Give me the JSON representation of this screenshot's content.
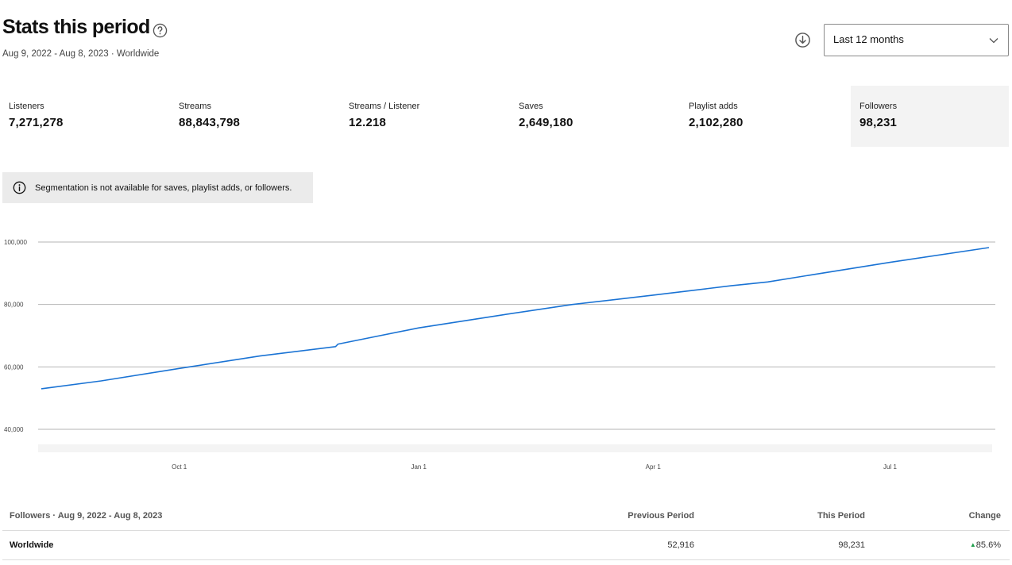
{
  "header": {
    "title": "Stats this period",
    "subtitle": "Aug 9, 2022 - Aug 8, 2023 · Worldwide"
  },
  "period_select": {
    "value": "Last 12 months"
  },
  "stats": [
    {
      "label": "Listeners",
      "value": "7,271,278"
    },
    {
      "label": "Streams",
      "value": "88,843,798"
    },
    {
      "label": "Streams / Listener",
      "value": "12.218"
    },
    {
      "label": "Saves",
      "value": "2,649,180"
    },
    {
      "label": "Playlist adds",
      "value": "2,102,280"
    },
    {
      "label": "Followers",
      "value": "98,231"
    }
  ],
  "notice": {
    "text": "Segmentation is not available for saves, playlist adds, or followers."
  },
  "chart_data": {
    "type": "line",
    "x": [
      "2022-08-09",
      "2022-09-01",
      "2022-10-01",
      "2022-11-01",
      "2022-11-30",
      "2022-12-01",
      "2023-01-01",
      "2023-02-01",
      "2023-03-01",
      "2023-04-01",
      "2023-05-01",
      "2023-05-15",
      "2023-06-01",
      "2023-07-01",
      "2023-08-08"
    ],
    "series": [
      {
        "values": [
          53000,
          55500,
          59500,
          63500,
          66500,
          67300,
          72500,
          76500,
          80000,
          83000,
          86000,
          87200,
          89500,
          93500,
          98231
        ]
      }
    ],
    "y_ticks": [
      "40,000",
      "60,000",
      "80,000",
      "100,000"
    ],
    "x_ticks": [
      "Oct 1",
      "Jan 1",
      "Apr 1",
      "Jul 1"
    ],
    "ylim": [
      40000,
      100000
    ],
    "line_color": "#1a73d4"
  },
  "table": {
    "title": "Followers · Aug 9, 2022 - Aug 8, 2023",
    "columns": [
      "Previous Period",
      "This Period",
      "Change"
    ],
    "rows": [
      {
        "region": "Worldwide",
        "previous": "52,916",
        "current": "98,231",
        "change": "85.6%"
      }
    ],
    "change_color": "#1e9e4a"
  }
}
